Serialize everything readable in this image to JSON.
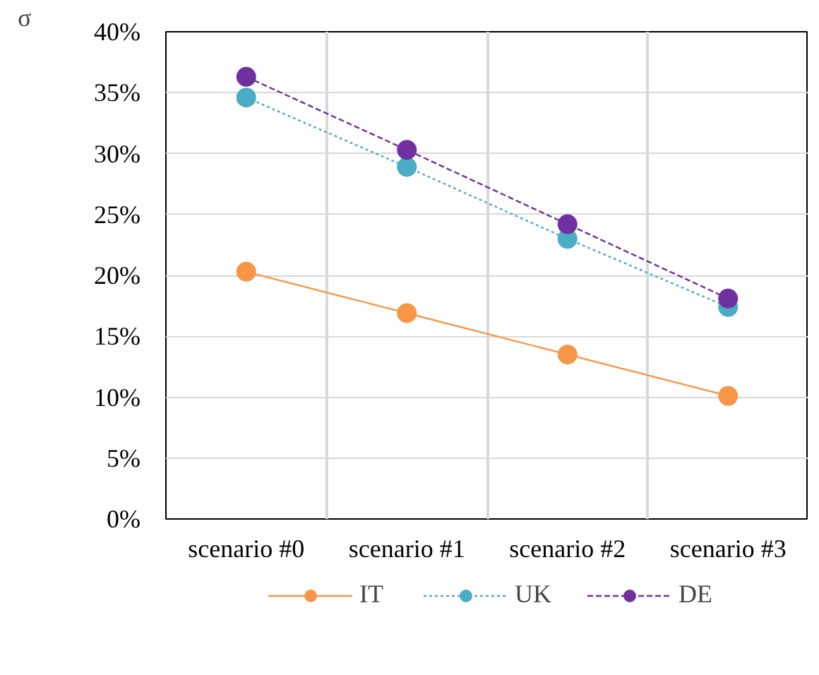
{
  "chart_data": {
    "type": "line",
    "ylabel": "σ",
    "categories": [
      "scenario #0",
      "scenario #1",
      "scenario #2",
      "scenario #3"
    ],
    "series": [
      {
        "name": "IT",
        "color": "#f79646",
        "line_style": "solid",
        "values": [
          20.3,
          16.9,
          13.5,
          10.1
        ]
      },
      {
        "name": "UK",
        "color": "#4bacc6",
        "line_style": "dotted",
        "values": [
          34.6,
          28.9,
          23.0,
          17.4
        ]
      },
      {
        "name": "DE",
        "color": "#7030a0",
        "line_style": "dashed",
        "values": [
          36.3,
          30.3,
          24.2,
          18.1
        ]
      }
    ],
    "ylim": [
      0,
      40
    ],
    "yticks": [
      {
        "value": 0,
        "label": "0%"
      },
      {
        "value": 5,
        "label": "5%"
      },
      {
        "value": 10,
        "label": "10%"
      },
      {
        "value": 15,
        "label": "15%"
      },
      {
        "value": 20,
        "label": "20%"
      },
      {
        "value": 25,
        "label": "25%"
      },
      {
        "value": 30,
        "label": "30%"
      },
      {
        "value": 35,
        "label": "35%"
      },
      {
        "value": 40,
        "label": "40%"
      }
    ],
    "grid": true,
    "legend": "bottom",
    "marker": "circle"
  }
}
